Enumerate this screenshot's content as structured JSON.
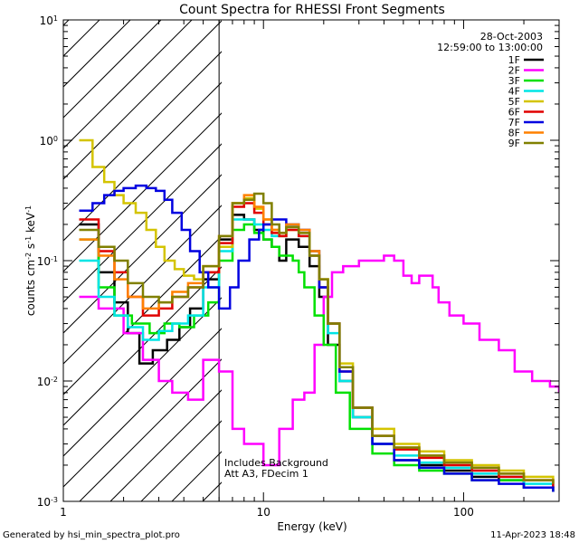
{
  "chart_data": {
    "type": "line",
    "title": "Count Spectra for RHESSI Front Segments",
    "xlabel": "Energy (keV)",
    "ylabel_main": "counts cm",
    "ylabel_sup1": "-2",
    "ylabel_mid": " s",
    "ylabel_sup2": "-1",
    "ylabel_mid2": " keV",
    "ylabel_sup3": "-1",
    "xscale": "log",
    "yscale": "log",
    "xlim": [
      1,
      300
    ],
    "ylim": [
      0.001,
      10
    ],
    "x_ticks": [
      {
        "value": 1,
        "label": "1"
      },
      {
        "value": 10,
        "label": "10"
      },
      {
        "value": 100,
        "label": "100"
      }
    ],
    "y_ticks": [
      {
        "value": 0.001,
        "base": "10",
        "exp": "-3"
      },
      {
        "value": 0.01,
        "base": "10",
        "exp": "-2"
      },
      {
        "value": 0.1,
        "base": "10",
        "exp": "-1"
      },
      {
        "value": 1,
        "base": "10",
        "exp": "0"
      },
      {
        "value": 10,
        "base": "10",
        "exp": "1"
      }
    ],
    "hatched_region": {
      "x_from": 1,
      "x_to": 6
    },
    "date": "28-Oct-2003",
    "time_range": "12:59:00 to 13:00:00",
    "annotation_line1": "Includes Background",
    "annotation_line2": "Att A3, FDecim 1",
    "footer_left": "Generated by hsi_min_spectra_plot.pro",
    "footer_right": "11-Apr-2023 18:48",
    "series": [
      {
        "name": "1F",
        "color": "#000000",
        "points": [
          [
            1.2,
            0.2
          ],
          [
            1.5,
            0.08
          ],
          [
            1.8,
            0.045
          ],
          [
            2.1,
            0.025
          ],
          [
            2.4,
            0.014
          ],
          [
            2.8,
            0.018
          ],
          [
            3.3,
            0.022
          ],
          [
            3.8,
            0.028
          ],
          [
            4.3,
            0.04
          ],
          [
            5,
            0.07
          ],
          [
            6,
            0.15
          ],
          [
            7,
            0.24
          ],
          [
            8,
            0.22
          ],
          [
            9,
            0.18
          ],
          [
            10,
            0.15
          ],
          [
            11,
            0.13
          ],
          [
            12,
            0.1
          ],
          [
            13,
            0.15
          ],
          [
            15,
            0.13
          ],
          [
            17,
            0.09
          ],
          [
            19,
            0.05
          ],
          [
            21,
            0.02
          ],
          [
            24,
            0.01
          ],
          [
            28,
            0.005
          ],
          [
            35,
            0.003
          ],
          [
            45,
            0.0022
          ],
          [
            60,
            0.002
          ],
          [
            80,
            0.0018
          ],
          [
            110,
            0.0016
          ],
          [
            150,
            0.0015
          ],
          [
            200,
            0.0013
          ],
          [
            280,
            0.0012
          ]
        ]
      },
      {
        "name": "2F",
        "color": "#ff00ff",
        "points": [
          [
            1.2,
            0.05
          ],
          [
            1.5,
            0.04
          ],
          [
            2,
            0.025
          ],
          [
            2.5,
            0.015
          ],
          [
            3,
            0.01
          ],
          [
            3.5,
            0.008
          ],
          [
            4.2,
            0.007
          ],
          [
            5,
            0.015
          ],
          [
            6,
            0.012
          ],
          [
            7,
            0.004
          ],
          [
            8,
            0.003
          ],
          [
            10,
            0.002
          ],
          [
            12,
            0.004
          ],
          [
            14,
            0.007
          ],
          [
            16,
            0.008
          ],
          [
            18,
            0.02
          ],
          [
            20,
            0.05
          ],
          [
            22,
            0.08
          ],
          [
            25,
            0.09
          ],
          [
            30,
            0.1
          ],
          [
            35,
            0.1
          ],
          [
            40,
            0.11
          ],
          [
            45,
            0.1
          ],
          [
            50,
            0.075
          ],
          [
            55,
            0.065
          ],
          [
            60,
            0.075
          ],
          [
            70,
            0.06
          ],
          [
            75,
            0.045
          ],
          [
            85,
            0.035
          ],
          [
            100,
            0.03
          ],
          [
            120,
            0.022
          ],
          [
            150,
            0.018
          ],
          [
            180,
            0.012
          ],
          [
            220,
            0.01
          ],
          [
            270,
            0.009
          ],
          [
            300,
            0.008
          ]
        ]
      },
      {
        "name": "3F",
        "color": "#00e000",
        "points": [
          [
            1.2,
            0.15
          ],
          [
            1.5,
            0.06
          ],
          [
            1.8,
            0.035
          ],
          [
            2.2,
            0.03
          ],
          [
            2.7,
            0.025
          ],
          [
            3.2,
            0.03
          ],
          [
            3.8,
            0.028
          ],
          [
            4.5,
            0.035
          ],
          [
            5.3,
            0.045
          ],
          [
            6,
            0.1
          ],
          [
            7,
            0.18
          ],
          [
            8,
            0.2
          ],
          [
            9,
            0.17
          ],
          [
            10,
            0.15
          ],
          [
            11,
            0.13
          ],
          [
            12,
            0.11
          ],
          [
            13,
            0.11
          ],
          [
            14,
            0.1
          ],
          [
            15,
            0.08
          ],
          [
            16,
            0.06
          ],
          [
            18,
            0.035
          ],
          [
            20,
            0.02
          ],
          [
            23,
            0.008
          ],
          [
            27,
            0.004
          ],
          [
            35,
            0.0025
          ],
          [
            45,
            0.002
          ],
          [
            60,
            0.0018
          ],
          [
            80,
            0.0017
          ],
          [
            110,
            0.0015
          ],
          [
            150,
            0.0015
          ],
          [
            200,
            0.0013
          ],
          [
            280,
            0.0012
          ]
        ]
      },
      {
        "name": "4F",
        "color": "#00e5e5",
        "points": [
          [
            1.2,
            0.1
          ],
          [
            1.5,
            0.05
          ],
          [
            1.8,
            0.035
          ],
          [
            2.1,
            0.028
          ],
          [
            2.5,
            0.022
          ],
          [
            3,
            0.026
          ],
          [
            3.5,
            0.03
          ],
          [
            4.2,
            0.035
          ],
          [
            5,
            0.06
          ],
          [
            6,
            0.12
          ],
          [
            7,
            0.22
          ],
          [
            8,
            0.22
          ],
          [
            9,
            0.2
          ],
          [
            10,
            0.18
          ],
          [
            11,
            0.16
          ],
          [
            12,
            0.16
          ],
          [
            13,
            0.19
          ],
          [
            15,
            0.16
          ],
          [
            17,
            0.11
          ],
          [
            19,
            0.06
          ],
          [
            21,
            0.025
          ],
          [
            24,
            0.01
          ],
          [
            28,
            0.005
          ],
          [
            35,
            0.003
          ],
          [
            45,
            0.0024
          ],
          [
            60,
            0.0021
          ],
          [
            80,
            0.0019
          ],
          [
            110,
            0.0017
          ],
          [
            150,
            0.0016
          ],
          [
            200,
            0.0014
          ],
          [
            280,
            0.0013
          ]
        ]
      },
      {
        "name": "5F",
        "color": "#d4c400",
        "points": [
          [
            1.2,
            1.0
          ],
          [
            1.4,
            0.6
          ],
          [
            1.6,
            0.45
          ],
          [
            1.8,
            0.35
          ],
          [
            2.0,
            0.3
          ],
          [
            2.3,
            0.25
          ],
          [
            2.6,
            0.18
          ],
          [
            2.9,
            0.13
          ],
          [
            3.2,
            0.1
          ],
          [
            3.6,
            0.085
          ],
          [
            4.0,
            0.075
          ],
          [
            4.5,
            0.07
          ],
          [
            5,
            0.08
          ],
          [
            6,
            0.13
          ],
          [
            7,
            0.3
          ],
          [
            8,
            0.33
          ],
          [
            9,
            0.27
          ],
          [
            10,
            0.22
          ],
          [
            11,
            0.18
          ],
          [
            12,
            0.16
          ],
          [
            13,
            0.18
          ],
          [
            15,
            0.17
          ],
          [
            17,
            0.12
          ],
          [
            19,
            0.07
          ],
          [
            21,
            0.03
          ],
          [
            24,
            0.014
          ],
          [
            28,
            0.006
          ],
          [
            35,
            0.004
          ],
          [
            45,
            0.003
          ],
          [
            60,
            0.0026
          ],
          [
            80,
            0.0022
          ],
          [
            110,
            0.002
          ],
          [
            150,
            0.0018
          ],
          [
            200,
            0.0016
          ],
          [
            280,
            0.0014
          ]
        ]
      },
      {
        "name": "6F",
        "color": "#e00000",
        "points": [
          [
            1.2,
            0.22
          ],
          [
            1.5,
            0.12
          ],
          [
            1.8,
            0.08
          ],
          [
            2.1,
            0.05
          ],
          [
            2.5,
            0.035
          ],
          [
            3,
            0.04
          ],
          [
            3.5,
            0.05
          ],
          [
            4.2,
            0.06
          ],
          [
            5,
            0.08
          ],
          [
            6,
            0.14
          ],
          [
            7,
            0.28
          ],
          [
            8,
            0.3
          ],
          [
            9,
            0.25
          ],
          [
            10,
            0.2
          ],
          [
            11,
            0.17
          ],
          [
            12,
            0.16
          ],
          [
            13,
            0.18
          ],
          [
            15,
            0.16
          ],
          [
            17,
            0.11
          ],
          [
            19,
            0.06
          ],
          [
            21,
            0.03
          ],
          [
            24,
            0.012
          ],
          [
            28,
            0.006
          ],
          [
            35,
            0.0035
          ],
          [
            45,
            0.0027
          ],
          [
            60,
            0.0023
          ],
          [
            80,
            0.002
          ],
          [
            110,
            0.0018
          ],
          [
            150,
            0.0016
          ],
          [
            200,
            0.0015
          ],
          [
            280,
            0.0013
          ]
        ]
      },
      {
        "name": "7F",
        "color": "#0000e0",
        "points": [
          [
            1.2,
            0.26
          ],
          [
            1.4,
            0.3
          ],
          [
            1.6,
            0.35
          ],
          [
            1.8,
            0.38
          ],
          [
            2.0,
            0.4
          ],
          [
            2.3,
            0.42
          ],
          [
            2.6,
            0.4
          ],
          [
            2.9,
            0.38
          ],
          [
            3.2,
            0.32
          ],
          [
            3.5,
            0.25
          ],
          [
            3.9,
            0.18
          ],
          [
            4.3,
            0.12
          ],
          [
            4.8,
            0.08
          ],
          [
            5.3,
            0.06
          ],
          [
            6,
            0.04
          ],
          [
            6.8,
            0.06
          ],
          [
            7.5,
            0.1
          ],
          [
            8.5,
            0.15
          ],
          [
            9.5,
            0.18
          ],
          [
            10,
            0.2
          ],
          [
            11,
            0.22
          ],
          [
            12,
            0.22
          ],
          [
            13,
            0.2
          ],
          [
            15,
            0.18
          ],
          [
            17,
            0.12
          ],
          [
            19,
            0.06
          ],
          [
            21,
            0.03
          ],
          [
            24,
            0.012
          ],
          [
            28,
            0.006
          ],
          [
            35,
            0.003
          ],
          [
            45,
            0.0022
          ],
          [
            60,
            0.0019
          ],
          [
            80,
            0.0017
          ],
          [
            110,
            0.0015
          ],
          [
            150,
            0.0014
          ],
          [
            200,
            0.0013
          ],
          [
            280,
            0.0012
          ]
        ]
      },
      {
        "name": "8F",
        "color": "#ff8000",
        "points": [
          [
            1.2,
            0.15
          ],
          [
            1.5,
            0.11
          ],
          [
            1.8,
            0.07
          ],
          [
            2.1,
            0.05
          ],
          [
            2.5,
            0.04
          ],
          [
            3,
            0.045
          ],
          [
            3.5,
            0.055
          ],
          [
            4.2,
            0.065
          ],
          [
            5,
            0.09
          ],
          [
            6,
            0.16
          ],
          [
            7,
            0.3
          ],
          [
            8,
            0.35
          ],
          [
            9,
            0.28
          ],
          [
            10,
            0.22
          ],
          [
            11,
            0.18
          ],
          [
            12,
            0.17
          ],
          [
            13,
            0.2
          ],
          [
            15,
            0.18
          ],
          [
            17,
            0.12
          ],
          [
            19,
            0.07
          ],
          [
            21,
            0.03
          ],
          [
            24,
            0.013
          ],
          [
            28,
            0.006
          ],
          [
            35,
            0.0035
          ],
          [
            45,
            0.0028
          ],
          [
            60,
            0.0024
          ],
          [
            80,
            0.0021
          ],
          [
            110,
            0.0019
          ],
          [
            150,
            0.0017
          ],
          [
            200,
            0.0015
          ],
          [
            280,
            0.0014
          ]
        ]
      },
      {
        "name": "9F",
        "color": "#808000",
        "points": [
          [
            1.2,
            0.18
          ],
          [
            1.5,
            0.13
          ],
          [
            1.8,
            0.1
          ],
          [
            2.1,
            0.065
          ],
          [
            2.5,
            0.05
          ],
          [
            3,
            0.045
          ],
          [
            3.5,
            0.05
          ],
          [
            4.2,
            0.06
          ],
          [
            5,
            0.09
          ],
          [
            6,
            0.16
          ],
          [
            7,
            0.3
          ],
          [
            8,
            0.32
          ],
          [
            9,
            0.36
          ],
          [
            10,
            0.3
          ],
          [
            11,
            0.2
          ],
          [
            12,
            0.17
          ],
          [
            13,
            0.19
          ],
          [
            15,
            0.17
          ],
          [
            17,
            0.11
          ],
          [
            19,
            0.07
          ],
          [
            21,
            0.03
          ],
          [
            24,
            0.013
          ],
          [
            28,
            0.006
          ],
          [
            35,
            0.0035
          ],
          [
            45,
            0.0028
          ],
          [
            60,
            0.0024
          ],
          [
            80,
            0.0021
          ],
          [
            110,
            0.0019
          ],
          [
            150,
            0.0017
          ],
          [
            200,
            0.0015
          ],
          [
            280,
            0.0014
          ]
        ]
      }
    ]
  }
}
